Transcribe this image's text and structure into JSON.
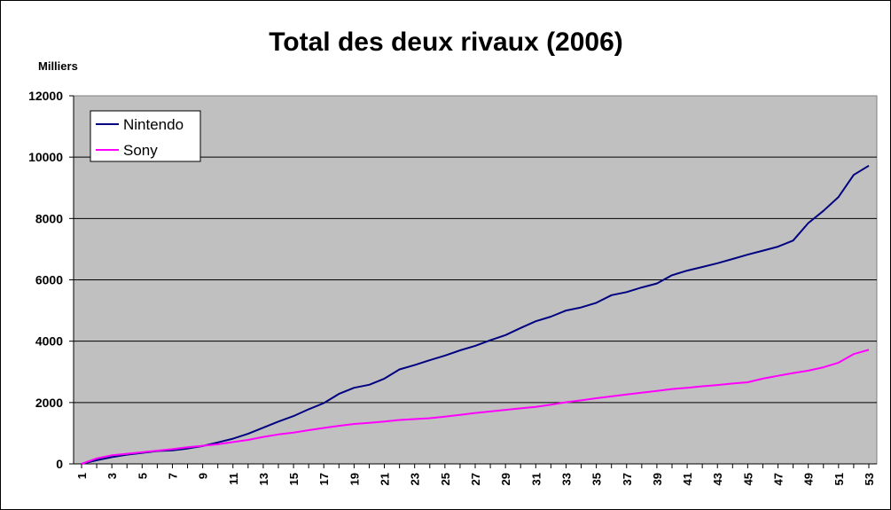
{
  "chart_data": {
    "type": "line",
    "title": "Total des deux rivaux (2006)",
    "unit_label": "Milliers",
    "xlabel": "",
    "ylabel": "",
    "ylim": [
      0,
      12000
    ],
    "y_ticks": [
      0,
      2000,
      4000,
      6000,
      8000,
      10000,
      12000
    ],
    "x_ticks": [
      1,
      3,
      5,
      7,
      9,
      11,
      13,
      15,
      17,
      19,
      21,
      23,
      25,
      27,
      29,
      31,
      33,
      35,
      37,
      39,
      41,
      43,
      45,
      47,
      49,
      51,
      53
    ],
    "x": [
      1,
      2,
      3,
      4,
      5,
      6,
      7,
      8,
      9,
      10,
      11,
      12,
      13,
      14,
      15,
      16,
      17,
      18,
      19,
      20,
      21,
      22,
      23,
      24,
      25,
      26,
      27,
      28,
      29,
      30,
      31,
      32,
      33,
      34,
      35,
      36,
      37,
      38,
      39,
      40,
      41,
      42,
      43,
      44,
      45,
      46,
      47,
      48,
      49,
      50,
      51,
      52,
      53
    ],
    "grid": true,
    "plot_background": "#C0C0C0",
    "legend_position": "top-left",
    "series": [
      {
        "name": "Nintendo",
        "color": "#000080",
        "values": [
          0,
          120,
          220,
          300,
          360,
          420,
          440,
          500,
          580,
          700,
          820,
          980,
          1180,
          1380,
          1560,
          1780,
          1980,
          2280,
          2480,
          2580,
          2780,
          3080,
          3220,
          3380,
          3530,
          3700,
          3850,
          4030,
          4200,
          4430,
          4650,
          4800,
          5000,
          5100,
          5250,
          5500,
          5600,
          5750,
          5880,
          6150,
          6300,
          6420,
          6540,
          6680,
          6820,
          6950,
          7080,
          7280,
          7850,
          8250,
          8700,
          9420,
          9720
        ]
      },
      {
        "name": "Sony",
        "color": "#FF00FF",
        "values": [
          0,
          180,
          280,
          330,
          380,
          430,
          480,
          540,
          590,
          640,
          710,
          780,
          880,
          960,
          1020,
          1100,
          1170,
          1240,
          1300,
          1340,
          1380,
          1430,
          1460,
          1490,
          1540,
          1600,
          1660,
          1710,
          1760,
          1810,
          1860,
          1930,
          2010,
          2070,
          2140,
          2200,
          2260,
          2320,
          2380,
          2440,
          2480,
          2530,
          2570,
          2620,
          2660,
          2780,
          2870,
          2960,
          3040,
          3150,
          3300,
          3580,
          3720
        ]
      }
    ]
  }
}
